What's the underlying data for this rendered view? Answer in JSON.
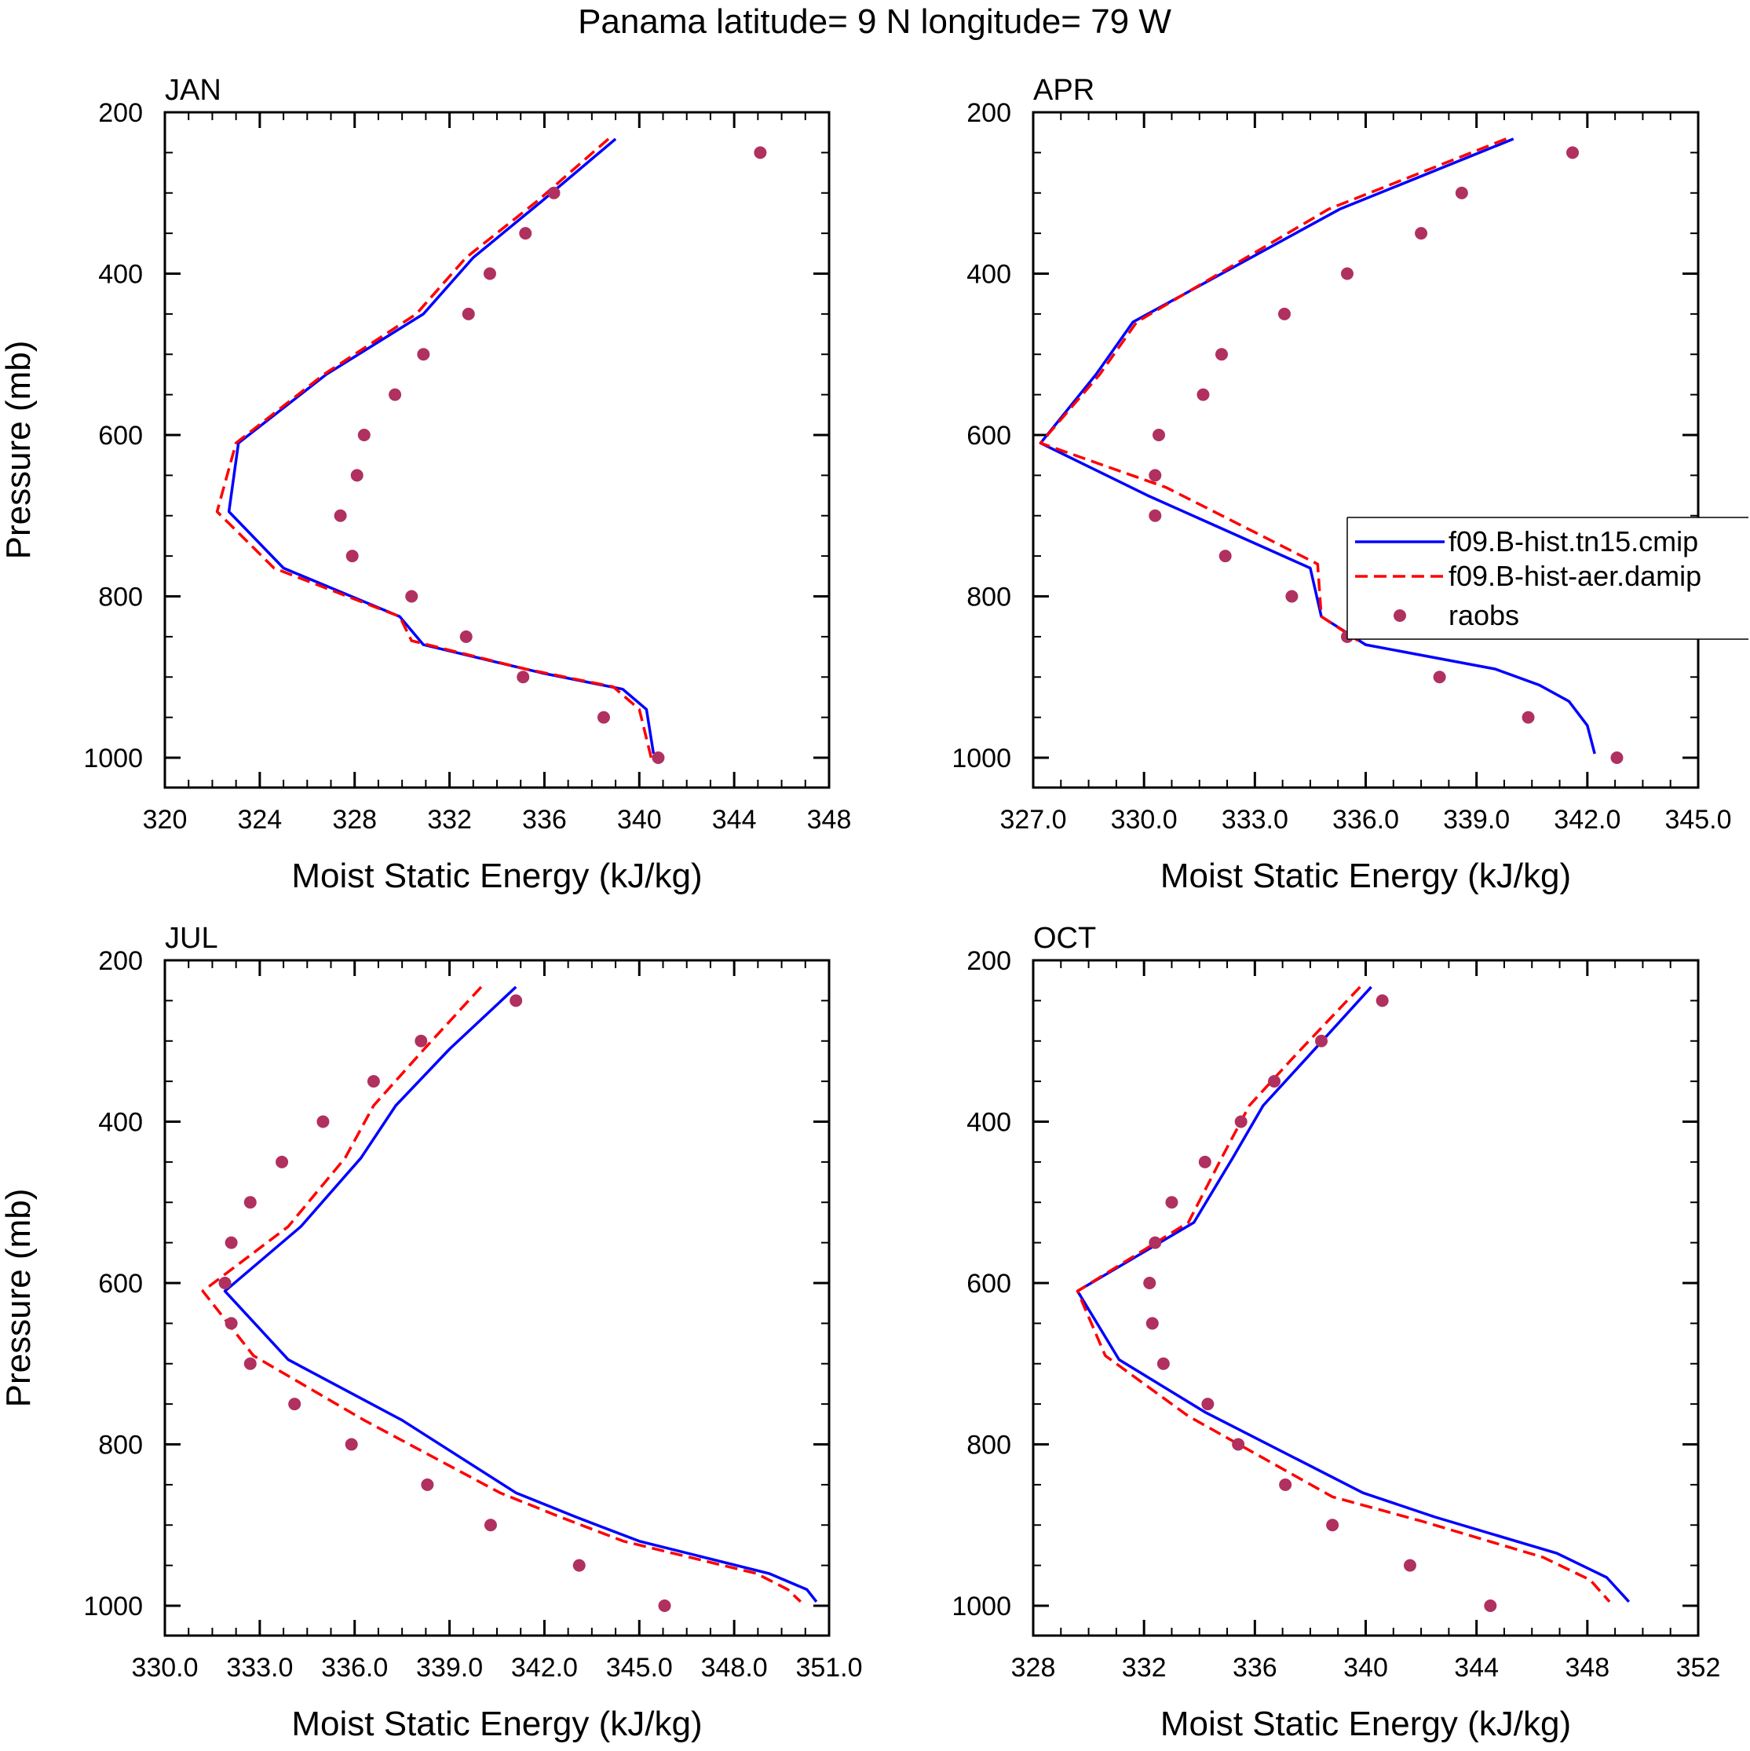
{
  "figure": {
    "title": "Panama  latitude= 9 N longitude= 79 W"
  },
  "colors": {
    "series_solid": "#0000ff",
    "series_dashed": "#ff0000",
    "obs": "#b03060",
    "axis": "#000000"
  },
  "legend": {
    "panel": "APR",
    "entries": [
      {
        "label": "f09.B-hist.tn15.cmip",
        "style": "solid"
      },
      {
        "label": "f09.B-hist-aer.damip",
        "style": "dashed"
      },
      {
        "label": "raobs",
        "style": "marker"
      }
    ]
  },
  "chart_data": [
    {
      "type": "line",
      "title": "JAN",
      "xlabel": "Moist Static Energy (kJ/kg)",
      "ylabel": "Pressure (mb)",
      "xlim": [
        320,
        348
      ],
      "ylim": [
        200,
        1000
      ],
      "y_inverted": true,
      "xticks": [
        320,
        324,
        328,
        332,
        336,
        340,
        344,
        348
      ],
      "xtick_labels": [
        "320",
        "324",
        "328",
        "332",
        "336",
        "340",
        "344",
        "348"
      ],
      "yticks": [
        200,
        400,
        600,
        800,
        1000
      ],
      "ytick_labels": [
        "200",
        "400",
        "600",
        "800",
        "1000"
      ],
      "series": [
        {
          "name": "f09.B-hist.tn15.cmip",
          "style": "solid",
          "x": [
            339.0,
            335.9,
            333.0,
            330.9,
            326.8,
            323.1,
            322.7,
            325.0,
            329.9,
            330.9,
            335.9,
            339.3,
            340.3,
            340.6
          ],
          "y": [
            233,
            310,
            380,
            450,
            525,
            610,
            695,
            765,
            825,
            860,
            895,
            915,
            940,
            995
          ]
        },
        {
          "name": "f09.B-hist-aer.damip",
          "style": "dashed",
          "x": [
            338.7,
            335.7,
            332.7,
            330.6,
            326.7,
            323.0,
            322.2,
            324.6,
            329.9,
            330.4,
            335.2,
            338.9,
            340.0,
            340.5
          ],
          "y": [
            233,
            310,
            380,
            450,
            525,
            610,
            695,
            765,
            825,
            855,
            890,
            912,
            940,
            1000
          ]
        },
        {
          "name": "raobs",
          "style": "marker",
          "x": [
            345.1,
            336.4,
            335.2,
            333.7,
            332.8,
            330.9,
            329.7,
            328.4,
            328.1,
            327.4,
            327.9,
            330.4,
            332.7,
            335.1,
            338.5,
            340.8
          ],
          "y": [
            250,
            300,
            350,
            400,
            450,
            500,
            550,
            600,
            650,
            700,
            750,
            800,
            850,
            900,
            950,
            1000
          ]
        }
      ]
    },
    {
      "type": "line",
      "title": "APR",
      "xlabel": "Moist Static Energy (kJ/kg)",
      "ylabel": "",
      "xlim": [
        327.0,
        345.0
      ],
      "ylim": [
        200,
        1000
      ],
      "y_inverted": true,
      "xticks": [
        327.0,
        330.0,
        333.0,
        336.0,
        339.0,
        342.0,
        345.0
      ],
      "xtick_labels": [
        "327.0",
        "330.0",
        "333.0",
        "336.0",
        "339.0",
        "342.0",
        "345.0"
      ],
      "yticks": [
        200,
        400,
        600,
        800,
        1000
      ],
      "ytick_labels": [
        "200",
        "400",
        "600",
        "800",
        "1000"
      ],
      "series": [
        {
          "name": "f09.B-hist.tn15.cmip",
          "style": "solid",
          "x": [
            340.0,
            335.3,
            329.7,
            328.7,
            327.2,
            330.1,
            334.5,
            334.8,
            336.0,
            339.5,
            340.7,
            341.5,
            342.0,
            342.2
          ],
          "y": [
            233,
            320,
            460,
            525,
            610,
            675,
            765,
            825,
            860,
            890,
            910,
            930,
            960,
            995
          ]
        },
        {
          "name": "f09.B-hist-aer.damip",
          "style": "dashed",
          "x": [
            339.8,
            335.0,
            329.8,
            328.8,
            327.2,
            330.6,
            334.7,
            334.8,
            335.8
          ],
          "y": [
            233,
            320,
            460,
            525,
            610,
            665,
            760,
            825,
            855
          ]
        },
        {
          "name": "raobs",
          "style": "marker",
          "x": [
            341.6,
            338.6,
            337.5,
            335.5,
            333.8,
            332.1,
            331.6,
            330.4,
            330.3,
            330.3,
            332.2,
            334.0,
            335.5,
            338.0,
            340.4,
            342.8
          ],
          "y": [
            250,
            300,
            350,
            400,
            450,
            500,
            550,
            600,
            650,
            700,
            750,
            800,
            850,
            900,
            950,
            1000
          ]
        }
      ]
    },
    {
      "type": "line",
      "title": "JUL",
      "xlabel": "Moist Static Energy (kJ/kg)",
      "ylabel": "Pressure (mb)",
      "xlim": [
        330.0,
        351.0
      ],
      "ylim": [
        200,
        1000
      ],
      "y_inverted": true,
      "xticks": [
        330.0,
        333.0,
        336.0,
        339.0,
        342.0,
        345.0,
        348.0,
        351.0
      ],
      "xtick_labels": [
        "330.0",
        "333.0",
        "336.0",
        "339.0",
        "342.0",
        "345.0",
        "348.0",
        "351.0"
      ],
      "yticks": [
        200,
        400,
        600,
        800,
        1000
      ],
      "ytick_labels": [
        "200",
        "400",
        "600",
        "800",
        "1000"
      ],
      "series": [
        {
          "name": "f09.B-hist.tn15.cmip",
          "style": "solid",
          "x": [
            341.1,
            339.0,
            337.3,
            336.2,
            334.3,
            331.9,
            333.9,
            337.5,
            341.1,
            343.0,
            345.0,
            349.1,
            350.3,
            350.6
          ],
          "y": [
            233,
            310,
            380,
            445,
            530,
            610,
            695,
            770,
            860,
            890,
            920,
            960,
            980,
            995
          ]
        },
        {
          "name": "f09.B-hist-aer.damip",
          "style": "dashed",
          "x": [
            340.0,
            338.2,
            336.6,
            335.7,
            333.9,
            331.2,
            332.8,
            336.3,
            340.6,
            342.5,
            344.5,
            348.7,
            349.7,
            350.1
          ],
          "y": [
            233,
            310,
            380,
            445,
            530,
            610,
            690,
            770,
            860,
            890,
            920,
            960,
            980,
            995
          ]
        },
        {
          "name": "raobs",
          "style": "marker",
          "x": [
            341.1,
            338.1,
            336.6,
            335.0,
            333.7,
            332.7,
            332.1,
            331.9,
            332.1,
            332.7,
            334.1,
            335.9,
            338.3,
            340.3,
            343.1,
            345.8
          ],
          "y": [
            250,
            300,
            350,
            400,
            450,
            500,
            550,
            600,
            650,
            700,
            750,
            800,
            850,
            900,
            950,
            1000
          ]
        }
      ]
    },
    {
      "type": "line",
      "title": "OCT",
      "xlabel": "Moist Static Energy (kJ/kg)",
      "ylabel": "",
      "xlim": [
        328,
        352
      ],
      "ylim": [
        200,
        1000
      ],
      "y_inverted": true,
      "xticks": [
        328,
        332,
        336,
        340,
        344,
        348,
        352
      ],
      "xtick_labels": [
        "328",
        "332",
        "336",
        "340",
        "344",
        "348",
        "352"
      ],
      "yticks": [
        200,
        400,
        600,
        800,
        1000
      ],
      "ytick_labels": [
        "200",
        "400",
        "600",
        "800",
        "1000"
      ],
      "series": [
        {
          "name": "f09.B-hist.tn15.cmip",
          "style": "solid",
          "x": [
            340.2,
            337.9,
            336.3,
            335.2,
            333.8,
            329.6,
            331.1,
            334.2,
            339.9,
            342.5,
            346.9,
            348.7,
            349.5
          ],
          "y": [
            233,
            320,
            380,
            445,
            525,
            610,
            695,
            760,
            860,
            890,
            935,
            965,
            995
          ]
        },
        {
          "name": "f09.B-hist-aer.damip",
          "style": "dashed",
          "x": [
            339.8,
            337.4,
            335.8,
            334.8,
            333.6,
            329.6,
            330.6,
            333.6,
            338.8,
            342.0,
            346.4,
            348.1,
            348.8
          ],
          "y": [
            233,
            320,
            380,
            445,
            525,
            610,
            690,
            765,
            865,
            895,
            940,
            968,
            995
          ]
        },
        {
          "name": "raobs",
          "style": "marker",
          "x": [
            340.6,
            338.4,
            336.7,
            335.5,
            334.2,
            333.0,
            332.4,
            332.2,
            332.3,
            332.7,
            334.3,
            335.4,
            337.1,
            338.8,
            341.6,
            344.5
          ],
          "y": [
            250,
            300,
            350,
            400,
            450,
            500,
            550,
            600,
            650,
            700,
            750,
            800,
            850,
            900,
            950,
            1000
          ]
        }
      ]
    }
  ]
}
